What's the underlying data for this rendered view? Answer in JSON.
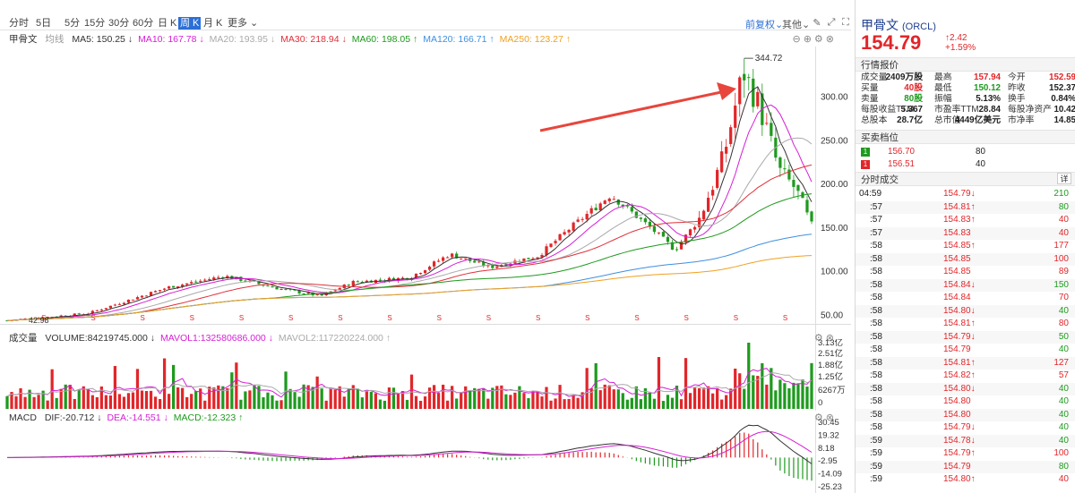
{
  "toolbar": {
    "timeframes": [
      "分时",
      "5日",
      "5分",
      "15分",
      "30分",
      "60分",
      "日 K",
      "周 K",
      "月 K",
      "更多"
    ],
    "active_timeframe": "周 K",
    "adjust_label": "前复权",
    "other_label": "其他"
  },
  "kline_panel": {
    "title": "甲骨文",
    "type_label": "均线",
    "indicators": [
      {
        "label": "MA5: 150.25",
        "arrow": "↓",
        "color": "#333333"
      },
      {
        "label": "MA10: 167.78",
        "arrow": "↓",
        "color": "#d61fd6"
      },
      {
        "label": "MA20: 193.95",
        "arrow": "↓",
        "color": "#aaaaaa"
      },
      {
        "label": "MA30: 218.94",
        "arrow": "↓",
        "color": "#e0303a"
      },
      {
        "label": "MA60: 198.05",
        "arrow": "↑",
        "color": "#1e9a1e"
      },
      {
        "label": "MA120: 166.71",
        "arrow": "↑",
        "color": "#3f8fe0"
      },
      {
        "label": "MA250: 123.27",
        "arrow": "↑",
        "color": "#f0a020"
      }
    ],
    "y_ticks": [
      "300.00",
      "250.00",
      "200.00",
      "150.00",
      "100.00",
      "50.00"
    ],
    "high_label": "344.72",
    "low_label": "42.98",
    "marker": "S"
  },
  "volume_panel": {
    "title": "成交量",
    "indicators": [
      {
        "label": "VOLUME:84219745.000",
        "arrow": "↓",
        "color": "#333333"
      },
      {
        "label": "MAVOL1:132580686.000",
        "arrow": "↓",
        "color": "#d61fd6"
      },
      {
        "label": "MAVOL2:117220224.000",
        "arrow": "↑",
        "color": "#aaaaaa"
      }
    ],
    "y_ticks": [
      "3.13亿",
      "2.51亿",
      "1.88亿",
      "1.25亿",
      "6267万",
      "0"
    ]
  },
  "macd_panel": {
    "title": "MACD",
    "indicators": [
      {
        "label": "DIF:-20.712",
        "arrow": "↓",
        "color": "#333333"
      },
      {
        "label": "DEA:-14.551",
        "arrow": "↓",
        "color": "#d61fd6"
      },
      {
        "label": "MACD:-12.323",
        "arrow": "↑",
        "color": "#1e9a1e"
      }
    ],
    "y_ticks": [
      "30.45",
      "19.32",
      "8.18",
      "-2.95",
      "-14.09",
      "-25.23"
    ]
  },
  "stock": {
    "name": "甲骨文",
    "code": "(ORCL)",
    "price": "154.79",
    "change": "2.42",
    "change_pct": "+1.59%"
  },
  "quote": {
    "header": "行情报价",
    "rows": [
      [
        [
          "成交量",
          "2409万股",
          "blk"
        ],
        [
          "最高",
          "157.94",
          "red"
        ],
        [
          "今开",
          "152.59",
          "red"
        ]
      ],
      [
        [
          "买量",
          "40股",
          "red"
        ],
        [
          "最低",
          "150.12",
          "green"
        ],
        [
          "昨收",
          "152.37",
          "blk"
        ]
      ],
      [
        [
          "卖量",
          "80股",
          "green"
        ],
        [
          "振幅",
          "5.13%",
          "blk"
        ],
        [
          "换手",
          "0.84%",
          "blk"
        ]
      ],
      [
        [
          "每股收益TTM",
          "5.367",
          "blk"
        ],
        [
          "市盈率TTM",
          "28.84",
          "blk"
        ],
        [
          "每股净资产",
          "10.42",
          "blk"
        ]
      ],
      [
        [
          "总股本",
          "28.7亿",
          "blk"
        ],
        [
          "总市值",
          "4449亿美元",
          "blk"
        ],
        [
          "市净率",
          "14.85",
          "blk"
        ]
      ]
    ]
  },
  "orderbook": {
    "header": "买卖档位",
    "rows": [
      {
        "level": "1",
        "price": "156.70",
        "qty": "80",
        "color": "#1e9a1e"
      },
      {
        "level": "1",
        "price": "156.51",
        "qty": "40",
        "color": "#e1262a"
      }
    ]
  },
  "trades": {
    "header": "分时成交",
    "detail_label": "详",
    "rows": [
      {
        "time": "04:59",
        "price": "154.79",
        "arrow": "↓",
        "pc": "red",
        "vol": "210",
        "vc": "green"
      },
      {
        "time": ":57",
        "price": "154.81",
        "arrow": "↑",
        "pc": "red",
        "vol": "80",
        "vc": "green"
      },
      {
        "time": ":57",
        "price": "154.83",
        "arrow": "↑",
        "pc": "red",
        "vol": "40",
        "vc": "red"
      },
      {
        "time": ":57",
        "price": "154.83",
        "arrow": "",
        "pc": "red",
        "vol": "40",
        "vc": "red"
      },
      {
        "time": ":58",
        "price": "154.85",
        "arrow": "↑",
        "pc": "red",
        "vol": "177",
        "vc": "red"
      },
      {
        "time": ":58",
        "price": "154.85",
        "arrow": "",
        "pc": "red",
        "vol": "100",
        "vc": "red"
      },
      {
        "time": ":58",
        "price": "154.85",
        "arrow": "",
        "pc": "red",
        "vol": "89",
        "vc": "red"
      },
      {
        "time": ":58",
        "price": "154.84",
        "arrow": "↓",
        "pc": "red",
        "vol": "150",
        "vc": "green"
      },
      {
        "time": ":58",
        "price": "154.84",
        "arrow": "",
        "pc": "red",
        "vol": "70",
        "vc": "red"
      },
      {
        "time": ":58",
        "price": "154.80",
        "arrow": "↓",
        "pc": "red",
        "vol": "40",
        "vc": "green"
      },
      {
        "time": ":58",
        "price": "154.81",
        "arrow": "↑",
        "pc": "red",
        "vol": "80",
        "vc": "red"
      },
      {
        "time": ":58",
        "price": "154.79",
        "arrow": "↓",
        "pc": "red",
        "vol": "50",
        "vc": "green"
      },
      {
        "time": ":58",
        "price": "154.79",
        "arrow": "",
        "pc": "red",
        "vol": "40",
        "vc": "green"
      },
      {
        "time": ":58",
        "price": "154.81",
        "arrow": "↑",
        "pc": "red",
        "vol": "127",
        "vc": "red"
      },
      {
        "time": ":58",
        "price": "154.82",
        "arrow": "↑",
        "pc": "red",
        "vol": "57",
        "vc": "red"
      },
      {
        "time": ":58",
        "price": "154.80",
        "arrow": "↓",
        "pc": "red",
        "vol": "40",
        "vc": "green"
      },
      {
        "time": ":58",
        "price": "154.80",
        "arrow": "",
        "pc": "red",
        "vol": "40",
        "vc": "green"
      },
      {
        "time": ":58",
        "price": "154.80",
        "arrow": "",
        "pc": "red",
        "vol": "40",
        "vc": "green"
      },
      {
        "time": ":58",
        "price": "154.79",
        "arrow": "↓",
        "pc": "red",
        "vol": "40",
        "vc": "green"
      },
      {
        "time": ":59",
        "price": "154.78",
        "arrow": "↓",
        "pc": "red",
        "vol": "40",
        "vc": "green"
      },
      {
        "time": ":59",
        "price": "154.79",
        "arrow": "↑",
        "pc": "red",
        "vol": "100",
        "vc": "red"
      },
      {
        "time": ":59",
        "price": "154.79",
        "arrow": "",
        "pc": "red",
        "vol": "80",
        "vc": "green"
      },
      {
        "time": ":59",
        "price": "154.80",
        "arrow": "↑",
        "pc": "red",
        "vol": "40",
        "vc": "red"
      }
    ]
  },
  "colors": {
    "up": "#e1262a",
    "down": "#1e9a1e",
    "accent": "#2b6fd6",
    "annotation_arrow": "#e8453c"
  },
  "chart_data": [
    {
      "type": "candlestick",
      "ylim": [
        40,
        350
      ],
      "y_ticks": [
        300,
        250,
        200,
        150,
        100,
        50
      ],
      "anchors": [
        [
          0,
          44
        ],
        [
          0.1,
          52
        ],
        [
          0.2,
          82
        ],
        [
          0.27,
          95
        ],
        [
          0.34,
          80
        ],
        [
          0.39,
          72
        ],
        [
          0.43,
          88
        ],
        [
          0.5,
          93
        ],
        [
          0.55,
          120
        ],
        [
          0.6,
          105
        ],
        [
          0.66,
          118
        ],
        [
          0.7,
          150
        ],
        [
          0.75,
          188
        ],
        [
          0.8,
          150
        ],
        [
          0.83,
          125
        ],
        [
          0.86,
          160
        ],
        [
          0.89,
          230
        ],
        [
          0.915,
          330
        ],
        [
          0.935,
          290
        ],
        [
          0.96,
          215
        ],
        [
          0.98,
          195
        ],
        [
          1.0,
          150
        ]
      ],
      "high": 344.72,
      "low": 42.98
    },
    {
      "type": "bar",
      "name": "volume",
      "ylim": [
        0,
        313000000
      ],
      "y_ticks": [
        313000000,
        251000000,
        188000000,
        125000000,
        62670000,
        0
      ]
    },
    {
      "type": "line",
      "name": "MACD",
      "ylim": [
        -25.23,
        30.45
      ],
      "y_ticks": [
        30.45,
        19.32,
        8.18,
        -2.95,
        -14.09,
        -25.23
      ],
      "dif_last": -20.712,
      "dea_last": -14.551,
      "macd_last": -12.323
    }
  ]
}
